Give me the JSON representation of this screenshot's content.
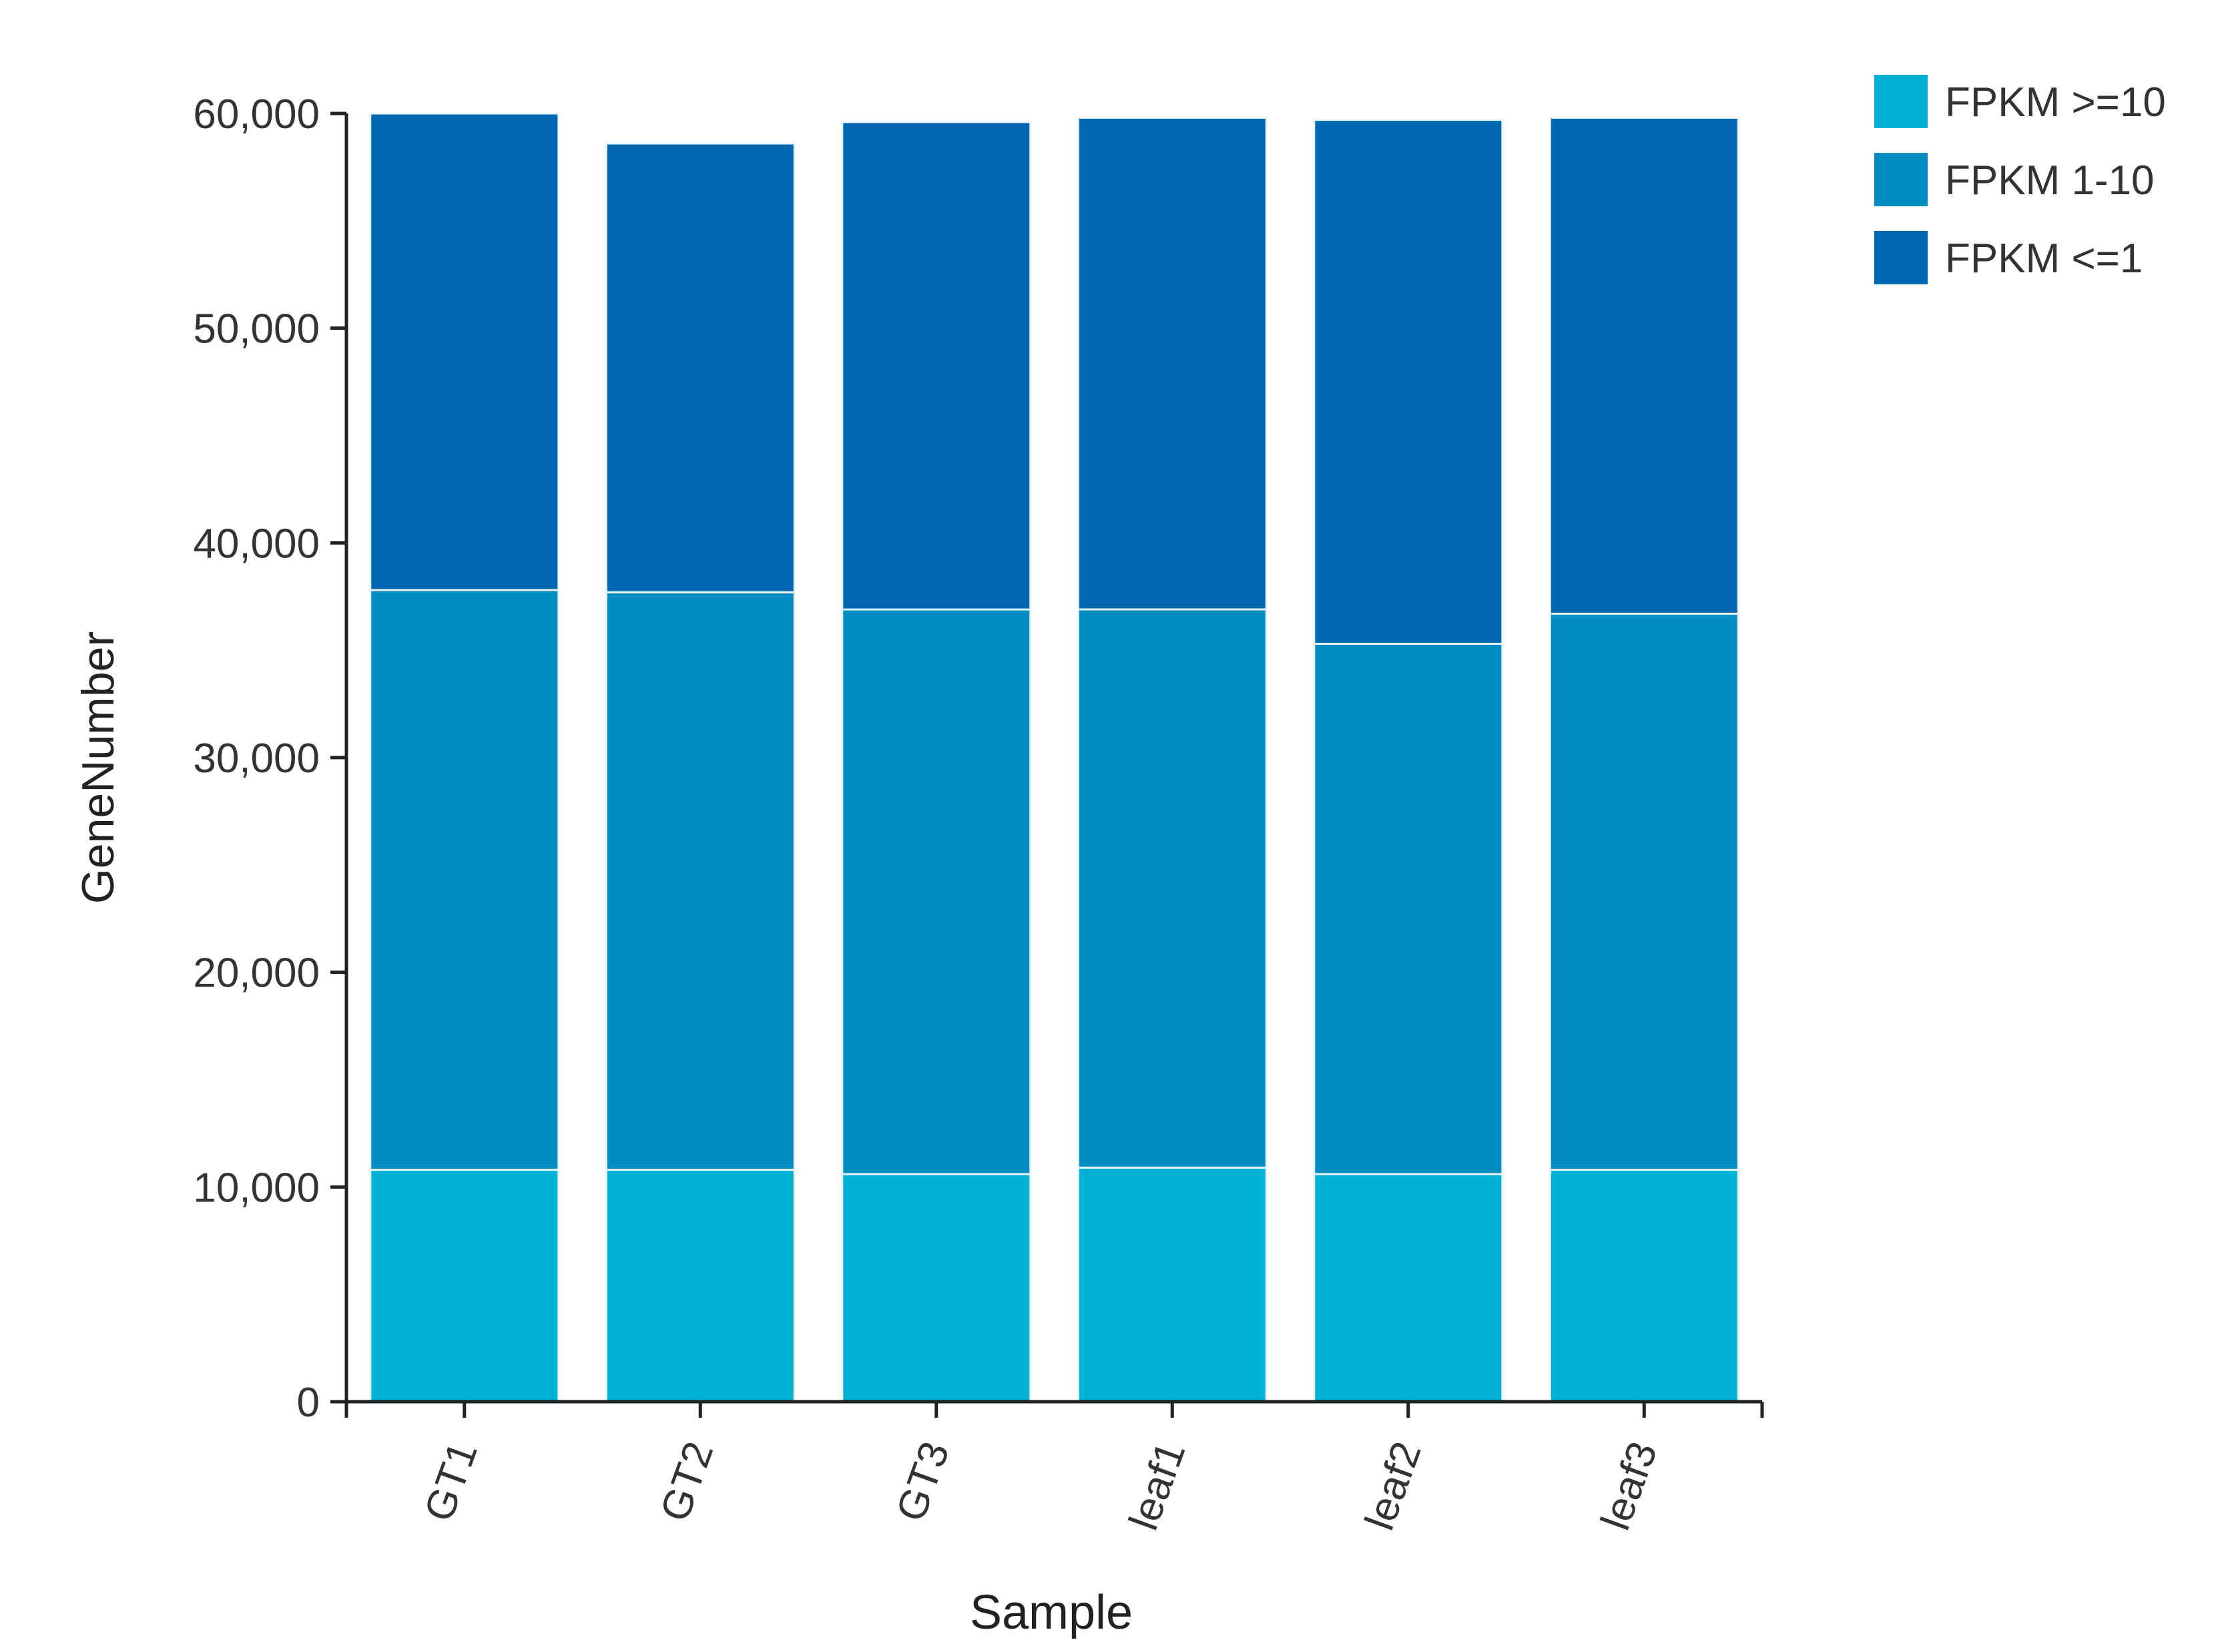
{
  "chart_data": {
    "type": "bar",
    "stacked": true,
    "title": "",
    "xlabel": "Sample",
    "ylabel": "GeneNumber",
    "categories": [
      "GT1",
      "GT2",
      "GT3",
      "leaf1",
      "leaf2",
      "leaf3"
    ],
    "series": [
      {
        "name": "FPKM >=10",
        "color": "#00b2d4",
        "values": [
          10800,
          10800,
          10600,
          10900,
          10600,
          10800
        ]
      },
      {
        "name": "FPKM 1-10",
        "color": "#008dc1",
        "values": [
          27000,
          26900,
          26300,
          26000,
          24700,
          25900
        ]
      },
      {
        "name": "FPKM <=1",
        "color": "#0067b0",
        "values": [
          22200,
          20900,
          22700,
          22900,
          24400,
          23100
        ]
      }
    ],
    "ylim": [
      0,
      60000
    ],
    "yticks": [
      0,
      10000,
      20000,
      30000,
      40000,
      50000,
      60000
    ],
    "ytick_labels": [
      "0",
      "10,000",
      "20,000",
      "30,000",
      "40,000",
      "50,000",
      "60,000"
    ],
    "grid": false,
    "legend_position": "top-right",
    "x_tick_rotation": "rotated",
    "colors": {
      "axis": "#222222",
      "text": "#333333"
    }
  }
}
